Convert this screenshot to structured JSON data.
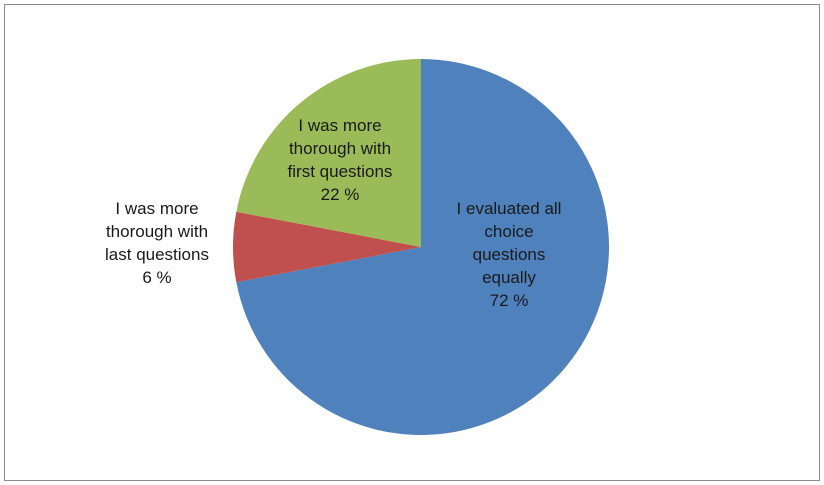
{
  "chart_data": {
    "type": "pie",
    "title": "",
    "slices": [
      {
        "label_lines": [
          "I evaluated all",
          "choice",
          "questions",
          "equally"
        ],
        "percent_text": "72 %",
        "value": 72,
        "color": "#4f81bd"
      },
      {
        "label_lines": [
          "I was more",
          "thorough with",
          "last questions"
        ],
        "percent_text": "6 %",
        "value": 6,
        "color": "#c0504d"
      },
      {
        "label_lines": [
          "I was more",
          "thorough with",
          "first questions"
        ],
        "percent_text": "22 %",
        "value": 22,
        "color": "#9bbb59"
      }
    ]
  }
}
